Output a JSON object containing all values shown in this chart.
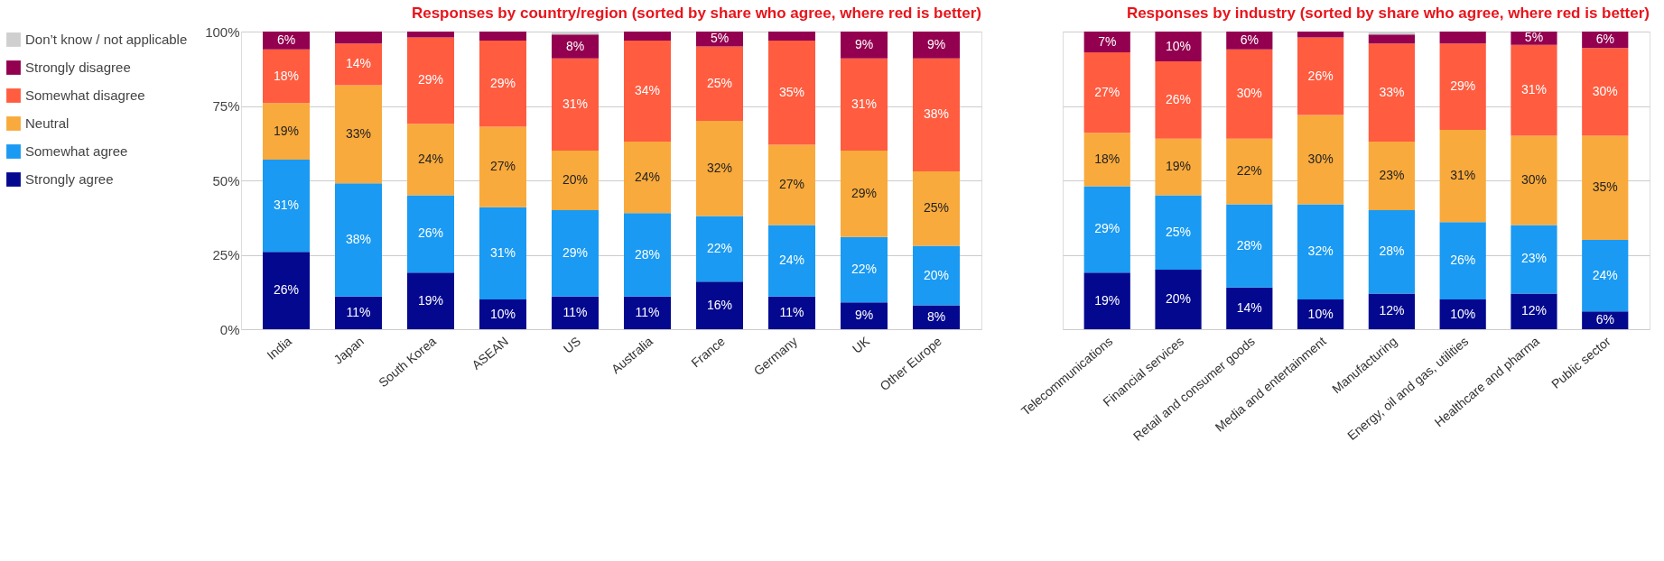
{
  "chart_data": [
    {
      "type": "bar",
      "stacked": true,
      "title": "Responses by country/region (sorted by share who agree, where red is better)",
      "categories": [
        "India",
        "Japan",
        "South Korea",
        "ASEAN",
        "US",
        "Australia",
        "France",
        "Germany",
        "UK",
        "Other Europe"
      ],
      "series": [
        {
          "name": "Strongly agree",
          "color": "#03088f",
          "values": [
            26,
            11,
            19,
            10,
            11,
            11,
            16,
            11,
            9,
            8
          ],
          "value_labels": [
            "26%",
            "11%",
            "19%",
            "10%",
            "11%",
            "11%",
            "16%",
            "11%",
            "9%",
            "8%"
          ]
        },
        {
          "name": "Somewhat agree",
          "color": "#1a9af2",
          "values": [
            31,
            38,
            26,
            31,
            29,
            28,
            22,
            24,
            22,
            20
          ],
          "value_labels": [
            "31%",
            "38%",
            "26%",
            "31%",
            "29%",
            "28%",
            "22%",
            "24%",
            "22%",
            "20%"
          ]
        },
        {
          "name": "Neutral",
          "color": "#f9aa3c",
          "values": [
            19,
            33,
            24,
            27,
            20,
            24,
            32,
            27,
            29,
            25
          ],
          "value_labels": [
            "19%",
            "33%",
            "24%",
            "27%",
            "20%",
            "24%",
            "32%",
            "27%",
            "29%",
            "25%"
          ]
        },
        {
          "name": "Somewhat disagree",
          "color": "#ff5c40",
          "values": [
            18,
            14,
            29,
            29,
            31,
            34,
            25,
            35,
            31,
            38
          ],
          "value_labels": [
            "18%",
            "14%",
            "29%",
            "29%",
            "31%",
            "34%",
            "25%",
            "35%",
            "31%",
            "38%"
          ]
        },
        {
          "name": "Strongly disagree",
          "color": "#93004f",
          "values": [
            6,
            4,
            2,
            3,
            8,
            3,
            5,
            3,
            9,
            9
          ],
          "value_labels": [
            "6%",
            null,
            null,
            null,
            "8%",
            null,
            "5%",
            null,
            "9%",
            "9%"
          ]
        },
        {
          "name": "Don’t know / not applicable",
          "color": "#cfcfcf",
          "values": [
            0,
            0,
            0,
            0,
            1,
            0,
            0,
            0,
            0,
            0
          ]
        }
      ],
      "ylim": [
        0,
        100
      ],
      "yticks": [
        {
          "value": 0,
          "label": "0%"
        },
        {
          "value": 25,
          "label": "25%"
        },
        {
          "value": 50,
          "label": "50%"
        },
        {
          "value": 75,
          "label": "75%"
        },
        {
          "value": 100,
          "label": "100%"
        }
      ],
      "grid": "y",
      "legend": "left"
    },
    {
      "type": "bar",
      "stacked": true,
      "title": "Responses by industry (sorted by share who agree, where red is better)",
      "categories": [
        "Telecommunications",
        "Financial services",
        "Retail and consumer goods",
        "Media and entertainment",
        "Manufacturing",
        "Energy, oil and gas, utilities",
        "Healthcare and pharma",
        "Public sector"
      ],
      "series": [
        {
          "color": "#03088f",
          "values": [
            19,
            20,
            14,
            10,
            12,
            10,
            12,
            6
          ],
          "value_labels": [
            "19%",
            "20%",
            "14%",
            "10%",
            "12%",
            "10%",
            "12%",
            "6%"
          ]
        },
        {
          "color": "#1a9af2",
          "values": [
            29,
            25,
            28,
            32,
            28,
            26,
            23,
            24
          ],
          "value_labels": [
            "29%",
            "25%",
            "28%",
            "32%",
            "28%",
            "26%",
            "23%",
            "24%"
          ]
        },
        {
          "color": "#f9aa3c",
          "values": [
            18,
            19,
            22,
            30,
            23,
            31,
            30,
            35
          ],
          "value_labels": [
            "18%",
            "19%",
            "22%",
            "30%",
            "23%",
            "31%",
            "30%",
            "35%"
          ]
        },
        {
          "color": "#ff5c40",
          "values": [
            27,
            26,
            30,
            26,
            33,
            29,
            30.5,
            29.5
          ],
          "value_labels": [
            "27%",
            "26%",
            "30%",
            "26%",
            "33%",
            "29%",
            "31%",
            "30%"
          ]
        },
        {
          "color": "#93004f",
          "values": [
            7,
            10,
            6,
            2,
            3,
            4,
            4.5,
            5.5
          ],
          "value_labels": [
            "7%",
            "10%",
            "6%",
            null,
            null,
            null,
            "5%",
            "6%"
          ]
        },
        {
          "color": "#cfcfcf",
          "values": [
            0,
            0,
            0,
            0,
            1,
            0,
            0,
            0
          ]
        }
      ],
      "ylim": [
        0,
        100
      ],
      "yticks": [
        {
          "value": 0,
          "label": null
        },
        {
          "value": 25,
          "label": null
        },
        {
          "value": 50,
          "label": null
        },
        {
          "value": 75,
          "label": null
        },
        {
          "value": 100,
          "label": null
        }
      ],
      "grid": "y",
      "tick_labels": "x"
    }
  ]
}
